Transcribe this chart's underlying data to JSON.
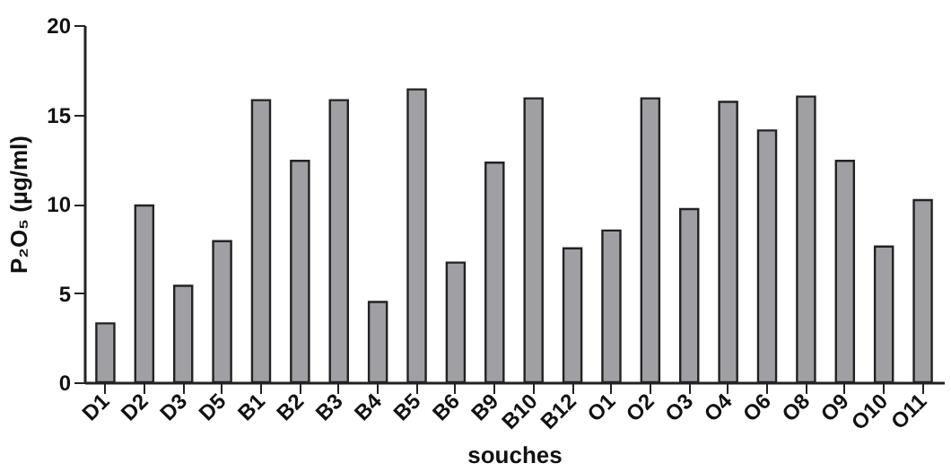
{
  "chart_data": {
    "type": "bar",
    "xlabel": "souches",
    "ylabel": "P₂O₅ (µg/ml)",
    "categories": [
      "D1",
      "D2",
      "D3",
      "D5",
      "B1",
      "B2",
      "B3",
      "B4",
      "B5",
      "B6",
      "B9",
      "B10",
      "B12",
      "O1",
      "O2",
      "O3",
      "O4",
      "O6",
      "O8",
      "O9",
      "O10",
      "O11"
    ],
    "values": [
      3.3,
      9.9,
      5.4,
      7.9,
      15.8,
      12.4,
      15.8,
      4.5,
      16.4,
      6.7,
      12.3,
      15.9,
      7.5,
      8.5,
      15.9,
      9.7,
      15.7,
      14.1,
      16.0,
      12.4,
      7.6,
      10.2
    ],
    "color": "#a0a0a4",
    "ylim": [
      0,
      20
    ],
    "yticks": [
      0,
      5,
      10,
      15,
      20
    ],
    "grid": false
  }
}
